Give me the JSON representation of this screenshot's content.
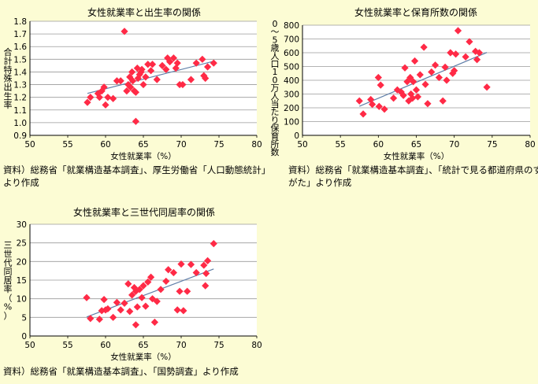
{
  "chart_data": [
    {
      "type": "scatter",
      "title": "女性就業率と出生率の関係",
      "xlabel": "女性就業率（%）",
      "ylabel": "合計特殊出生率",
      "xlim": [
        50,
        80
      ],
      "ylim": [
        0.9,
        1.8
      ],
      "x_ticks": [
        "50",
        "55",
        "60",
        "65",
        "70",
        "75",
        "80"
      ],
      "y_ticks": [
        "0.9",
        "1.0",
        "1.1",
        "1.2",
        "1.3",
        "1.4",
        "1.5",
        "1.6",
        "1.7",
        "1.8"
      ],
      "grid": true,
      "trendline": true,
      "source_note": [
        "資料）総務省「就業構造基本調査」、厚生労働省「人口動態統計」",
        "より作成"
      ],
      "points": [
        [
          57.6,
          1.16
        ],
        [
          58.0,
          1.2
        ],
        [
          59.0,
          1.23
        ],
        [
          59.2,
          1.2
        ],
        [
          59.5,
          1.25
        ],
        [
          59.8,
          1.28
        ],
        [
          60.0,
          1.14
        ],
        [
          60.3,
          1.2
        ],
        [
          61.0,
          1.19
        ],
        [
          61.5,
          1.33
        ],
        [
          62.0,
          1.33
        ],
        [
          62.5,
          1.72
        ],
        [
          62.8,
          1.25
        ],
        [
          63.0,
          1.3
        ],
        [
          63.2,
          1.36
        ],
        [
          63.3,
          1.28
        ],
        [
          63.5,
          1.4
        ],
        [
          63.6,
          1.33
        ],
        [
          63.8,
          1.25
        ],
        [
          64.0,
          1.24
        ],
        [
          64.0,
          1.01
        ],
        [
          64.2,
          1.43
        ],
        [
          64.3,
          1.35
        ],
        [
          64.5,
          1.38
        ],
        [
          64.7,
          1.4
        ],
        [
          64.8,
          1.42
        ],
        [
          65.0,
          1.3
        ],
        [
          65.3,
          1.36
        ],
        [
          65.6,
          1.46
        ],
        [
          66.0,
          1.41
        ],
        [
          66.2,
          1.46
        ],
        [
          66.8,
          1.34
        ],
        [
          67.5,
          1.45
        ],
        [
          68.0,
          1.42
        ],
        [
          68.2,
          1.51
        ],
        [
          68.5,
          1.48
        ],
        [
          69.0,
          1.51
        ],
        [
          69.3,
          1.43
        ],
        [
          69.5,
          1.47
        ],
        [
          69.8,
          1.3
        ],
        [
          70.2,
          1.3
        ],
        [
          71.3,
          1.34
        ],
        [
          72.0,
          1.47
        ],
        [
          72.8,
          1.5
        ],
        [
          73.0,
          1.37
        ],
        [
          73.2,
          1.35
        ],
        [
          73.5,
          1.44
        ],
        [
          74.3,
          1.47
        ]
      ]
    },
    {
      "type": "scatter",
      "title": "女性就業率と保育所数の関係",
      "xlabel": "女性就業率（%）",
      "ylabel": "0～5歳人口10万人当たり保育所数",
      "xlim": [
        50,
        80
      ],
      "ylim": [
        0,
        800
      ],
      "x_ticks": [
        "50",
        "55",
        "60",
        "65",
        "70",
        "75",
        "80"
      ],
      "y_ticks": [
        "0",
        "100",
        "200",
        "300",
        "400",
        "500",
        "600",
        "700",
        "800"
      ],
      "grid": true,
      "trendline": true,
      "source_note": [
        "資料）総務省「就業構造基本調査」、「統計で見る都道府県のす",
        "がた」より作成"
      ],
      "points": [
        [
          57.5,
          250
        ],
        [
          58.0,
          155
        ],
        [
          59.0,
          260
        ],
        [
          59.2,
          225
        ],
        [
          60.0,
          420
        ],
        [
          60.1,
          210
        ],
        [
          60.3,
          365
        ],
        [
          60.8,
          190
        ],
        [
          62.0,
          270
        ],
        [
          62.5,
          330
        ],
        [
          63.0,
          315
        ],
        [
          63.3,
          290
        ],
        [
          63.5,
          490
        ],
        [
          63.8,
          390
        ],
        [
          64.0,
          250
        ],
        [
          64.2,
          420
        ],
        [
          64.3,
          300
        ],
        [
          64.5,
          270
        ],
        [
          64.6,
          390
        ],
        [
          64.8,
          540
        ],
        [
          65.0,
          330
        ],
        [
          65.2,
          280
        ],
        [
          65.5,
          440
        ],
        [
          66.0,
          640
        ],
        [
          66.2,
          370
        ],
        [
          66.5,
          230
        ],
        [
          67.0,
          460
        ],
        [
          67.5,
          510
        ],
        [
          68.0,
          420
        ],
        [
          68.5,
          250
        ],
        [
          68.8,
          495
        ],
        [
          69.0,
          400
        ],
        [
          69.5,
          600
        ],
        [
          69.8,
          450
        ],
        [
          70.0,
          470
        ],
        [
          70.2,
          590
        ],
        [
          70.5,
          760
        ],
        [
          71.5,
          570
        ],
        [
          72.0,
          680
        ],
        [
          72.8,
          610
        ],
        [
          73.0,
          550
        ],
        [
          73.3,
          600
        ],
        [
          74.3,
          350
        ]
      ]
    },
    {
      "type": "scatter",
      "title": "女性就業率と三世代同居率の関係",
      "xlabel": "女性就業率（%）",
      "ylabel": "三世代同居率（%）",
      "xlim": [
        50,
        80
      ],
      "ylim": [
        0,
        30
      ],
      "x_ticks": [
        "50",
        "55",
        "60",
        "65",
        "70",
        "75",
        "80"
      ],
      "y_ticks": [
        "0",
        "5",
        "10",
        "15",
        "20",
        "25",
        "30"
      ],
      "grid": true,
      "trendline": true,
      "source_note": [
        "資料）総務省「就業構造基本調査」、「国勢調査」より作成"
      ],
      "points": [
        [
          57.5,
          10.3
        ],
        [
          58.0,
          4.7
        ],
        [
          59.2,
          4.5
        ],
        [
          59.5,
          6.8
        ],
        [
          59.8,
          9.8
        ],
        [
          60.0,
          7.0
        ],
        [
          60.3,
          7.3
        ],
        [
          61.0,
          5.0
        ],
        [
          61.5,
          9.0
        ],
        [
          62.0,
          7.0
        ],
        [
          62.5,
          8.8
        ],
        [
          63.0,
          14.0
        ],
        [
          63.2,
          6.6
        ],
        [
          63.5,
          11.0
        ],
        [
          63.8,
          13.0
        ],
        [
          64.0,
          12.0
        ],
        [
          64.0,
          3.0
        ],
        [
          64.2,
          7.8
        ],
        [
          64.5,
          12.5
        ],
        [
          64.8,
          10.3
        ],
        [
          65.0,
          13.5
        ],
        [
          65.3,
          8.0
        ],
        [
          65.6,
          14.5
        ],
        [
          66.0,
          15.8
        ],
        [
          66.2,
          10.0
        ],
        [
          66.5,
          3.7
        ],
        [
          66.8,
          9.3
        ],
        [
          67.3,
          12.5
        ],
        [
          68.0,
          14.7
        ],
        [
          68.3,
          17.8
        ],
        [
          69.0,
          17.0
        ],
        [
          69.5,
          7.0
        ],
        [
          69.8,
          12.0
        ],
        [
          70.0,
          19.3
        ],
        [
          70.3,
          6.8
        ],
        [
          70.8,
          12.0
        ],
        [
          71.3,
          19.2
        ],
        [
          72.0,
          17.0
        ],
        [
          73.0,
          19.0
        ],
        [
          73.2,
          13.5
        ],
        [
          73.3,
          16.8
        ],
        [
          73.5,
          20.2
        ],
        [
          74.3,
          24.8
        ]
      ]
    }
  ]
}
